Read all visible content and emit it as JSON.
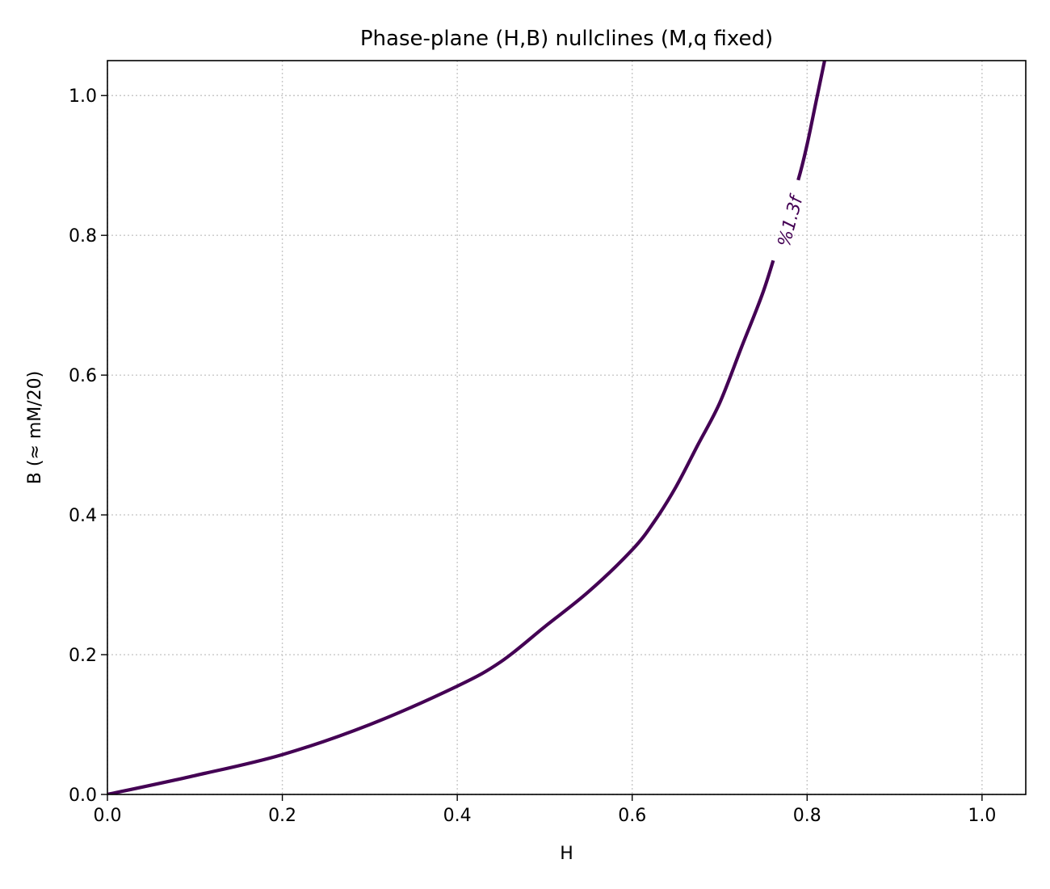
{
  "chart_data": {
    "type": "line",
    "title": "Phase-plane (H,B) nullclines (M,q fixed)",
    "xlabel": "H",
    "ylabel": "B (≈ mM/20)",
    "xlim": [
      0.0,
      1.05
    ],
    "ylim": [
      0.0,
      1.05
    ],
    "xticks": [
      0.0,
      0.2,
      0.4,
      0.6,
      0.8,
      1.0
    ],
    "yticks": [
      0.0,
      0.2,
      0.4,
      0.6,
      0.8,
      1.0
    ],
    "xtick_labels": [
      "0.0",
      "0.2",
      "0.4",
      "0.6",
      "0.8",
      "1.0"
    ],
    "ytick_labels": [
      "0.0",
      "0.2",
      "0.4",
      "0.6",
      "0.8",
      "1.0"
    ],
    "grid": true,
    "series": [
      {
        "color": "#440154",
        "x": [
          0.0,
          0.1,
          0.2,
          0.3,
          0.4,
          0.45,
          0.5,
          0.55,
          0.6,
          0.625,
          0.65,
          0.675,
          0.7,
          0.725,
          0.75,
          0.77,
          0.79,
          0.8,
          0.81,
          0.82
        ],
        "y": [
          0.0,
          0.027,
          0.057,
          0.1,
          0.155,
          0.19,
          0.24,
          0.29,
          0.35,
          0.39,
          0.44,
          0.5,
          0.56,
          0.64,
          0.72,
          0.8,
          0.88,
          0.93,
          0.99,
          1.05
        ]
      }
    ],
    "annotations": [
      {
        "text": "%1.3f",
        "x": 0.78,
        "y": 0.82
      }
    ]
  }
}
